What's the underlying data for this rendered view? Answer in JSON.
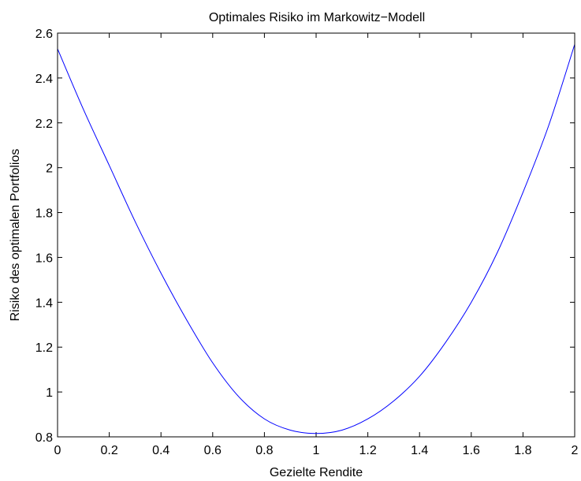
{
  "chart_data": {
    "type": "line",
    "title": "Optimales Risiko im Markowitz−Modell",
    "xlabel": "Gezielte Rendite",
    "ylabel": "Risiko des optimalen Portfolios",
    "xlim": [
      0,
      2
    ],
    "ylim": [
      0.8,
      2.6
    ],
    "xticks": [
      "0",
      "0.2",
      "0.4",
      "0.6",
      "0.8",
      "1",
      "1.2",
      "1.4",
      "1.6",
      "1.8",
      "2"
    ],
    "yticks": [
      "0.8",
      "1",
      "1.2",
      "1.4",
      "1.6",
      "1.8",
      "2",
      "2.2",
      "2.4",
      "2.6"
    ],
    "grid": false,
    "line_color": "#0000ff",
    "series": [
      {
        "x": [
          0,
          0.1,
          0.2,
          0.3,
          0.4,
          0.5,
          0.6,
          0.7,
          0.8,
          0.9,
          1.0,
          1.1,
          1.2,
          1.3,
          1.4,
          1.5,
          1.6,
          1.7,
          1.8,
          1.9,
          2.0
        ],
        "values": [
          2.53,
          2.26,
          2.01,
          1.76,
          1.53,
          1.32,
          1.13,
          0.98,
          0.88,
          0.83,
          0.815,
          0.83,
          0.88,
          0.96,
          1.07,
          1.22,
          1.4,
          1.62,
          1.89,
          2.19,
          2.55
        ]
      }
    ]
  }
}
